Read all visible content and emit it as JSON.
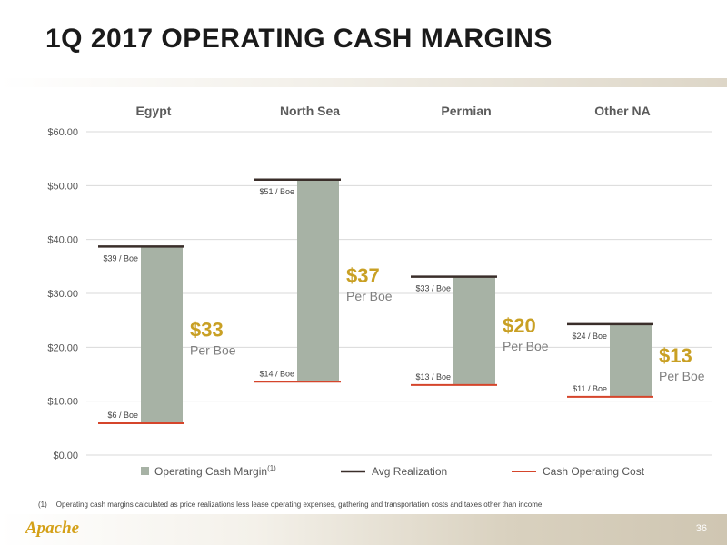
{
  "slide": {
    "title": "1Q 2017 OPERATING CASH MARGINS",
    "footnote_number": "(1)",
    "footnote_text": "Operating cash margins calculated as price realizations less lease operating expenses, gathering and transportation costs and taxes other than income.",
    "logo_text": "Apache",
    "page_number": "36"
  },
  "colors": {
    "margin_bar": "#a7b2a5",
    "avg_realization": "#3a2e2a",
    "cash_operating_cost": "#d5452b",
    "margin_value": "#c9a024",
    "gridline": "#d9d9d9"
  },
  "chart_data": {
    "type": "bar",
    "title": "",
    "categories": [
      "Egypt",
      "North Sea",
      "Permian",
      "Other NA"
    ],
    "ylim": [
      0,
      60
    ],
    "yticks": [
      0,
      10,
      20,
      30,
      40,
      50,
      60
    ],
    "ytick_labels": [
      "$0.00",
      "$10.00",
      "$20.00",
      "$30.00",
      "$40.00",
      "$50.00",
      "$60.00"
    ],
    "grid": true,
    "legend_position": "bottom",
    "series": [
      {
        "name": "Operating Cash Margin",
        "name_superscript": "(1)",
        "style": "floating-bar",
        "values": [
          33,
          37,
          20,
          13
        ]
      },
      {
        "name": "Avg Realization",
        "style": "line-marker",
        "values": [
          38.7,
          51.1,
          33.1,
          24.3
        ],
        "labels": [
          "$39 / Boe",
          "$51 / Boe",
          "$33 / Boe",
          "$24 / Boe"
        ]
      },
      {
        "name": "Cash Operating Cost",
        "style": "line-marker",
        "values": [
          5.9,
          13.6,
          13.0,
          10.8
        ],
        "labels": [
          "$6 / Boe",
          "$14 / Boe",
          "$13 / Boe",
          "$11 / Boe"
        ]
      }
    ],
    "margin_labels": [
      "$33",
      "$37",
      "$20",
      "$13"
    ],
    "margin_unit": "Per Boe"
  }
}
